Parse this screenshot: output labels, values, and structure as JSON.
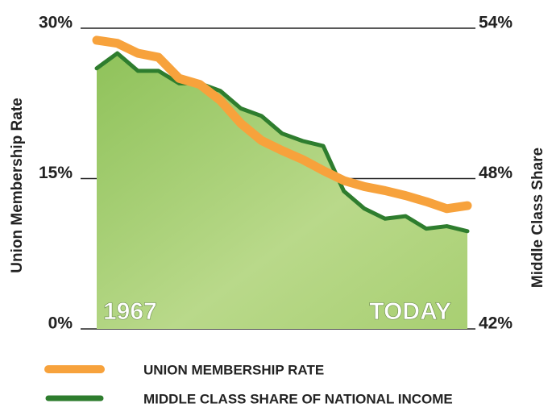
{
  "chart_data": {
    "type": "line",
    "categories": [
      "1967",
      null,
      null,
      null,
      null,
      null,
      null,
      null,
      null,
      null,
      null,
      null,
      null,
      null,
      null,
      null,
      null,
      null,
      "TODAY"
    ],
    "series": [
      {
        "name": "UNION MEMBERSHIP RATE",
        "color": "#f7a23c",
        "values": [
          28.8,
          28.5,
          27.5,
          27.1,
          25.0,
          24.4,
          22.8,
          20.5,
          18.8,
          17.8,
          16.9,
          15.8,
          14.8,
          14.2,
          13.8,
          13.3,
          12.7,
          12.0,
          12.3
        ]
      },
      {
        "name": "MIDDLE CLASS SHARE OF NATIONAL INCOME",
        "color": "#2e7d2e",
        "axis": "y2",
        "values": [
          52.4,
          53.0,
          52.3,
          52.3,
          51.8,
          51.8,
          51.5,
          50.8,
          50.5,
          49.8,
          49.5,
          49.3,
          47.5,
          46.8,
          46.4,
          46.5,
          46.0,
          46.1,
          45.9
        ]
      }
    ],
    "y_label": "Union Membership Rate",
    "y2_label": "Middle Class Share",
    "ylim": [
      0,
      30
    ],
    "yticks": [
      {
        "value": 0,
        "label": "0%"
      },
      {
        "value": 15,
        "label": "15%"
      },
      {
        "value": 30,
        "label": "30%"
      }
    ],
    "y2lim": [
      42,
      54
    ],
    "y2ticks": [
      {
        "value": 42,
        "label": "42%"
      },
      {
        "value": 48,
        "label": "48%"
      },
      {
        "value": 54,
        "label": "54%"
      }
    ],
    "grid": true
  }
}
